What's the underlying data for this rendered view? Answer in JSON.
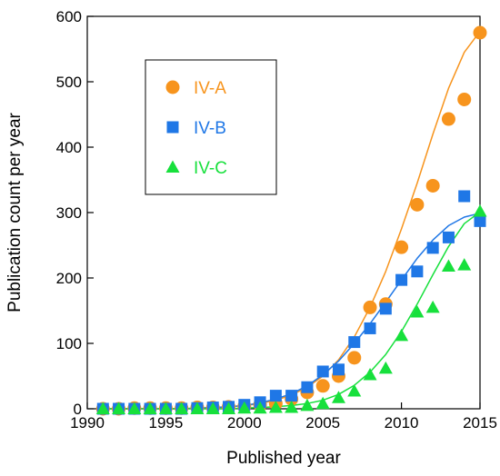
{
  "chart_data": {
    "type": "scatter",
    "title": "",
    "xlabel": "Published year",
    "ylabel": "Publication count per year",
    "xlim": [
      1990,
      2015
    ],
    "ylim": [
      0,
      600
    ],
    "x_ticks": [
      1990,
      1995,
      2000,
      2005,
      2010,
      2015
    ],
    "y_ticks": [
      0,
      100,
      200,
      300,
      400,
      500,
      600
    ],
    "grid": false,
    "legend_position": "top-left",
    "has_fit_curves": true,
    "series": [
      {
        "name": "IV-A",
        "marker": "circle",
        "color": "#f7941d",
        "x": [
          1991,
          1992,
          1993,
          1994,
          1995,
          1996,
          1997,
          1998,
          1999,
          2000,
          2001,
          2002,
          2003,
          2004,
          2005,
          2006,
          2007,
          2008,
          2009,
          2010,
          2011,
          2012,
          2013,
          2014,
          2015
        ],
        "y": [
          0,
          0,
          1,
          1,
          1,
          1,
          2,
          2,
          3,
          4,
          6,
          8,
          15,
          25,
          35,
          50,
          78,
          155,
          160,
          247,
          312,
          341,
          443,
          473,
          575
        ],
        "fit": [
          0,
          0,
          0,
          0,
          0,
          0,
          1,
          1,
          3,
          5,
          8,
          13,
          21,
          33,
          50,
          75,
          110,
          155,
          210,
          275,
          345,
          420,
          490,
          545,
          577
        ]
      },
      {
        "name": "IV-B",
        "marker": "square",
        "color": "#1f77e6",
        "x": [
          1991,
          1992,
          1993,
          1994,
          1995,
          1996,
          1997,
          1998,
          1999,
          2000,
          2001,
          2002,
          2003,
          2004,
          2005,
          2006,
          2007,
          2008,
          2009,
          2010,
          2011,
          2012,
          2013,
          2014,
          2015
        ],
        "y": [
          0,
          0,
          0,
          0,
          0,
          0,
          1,
          2,
          3,
          6,
          10,
          20,
          20,
          33,
          57,
          60,
          102,
          123,
          153,
          197,
          210,
          246,
          262,
          325,
          287
        ],
        "fit": [
          0,
          0,
          0,
          0,
          0,
          0,
          1,
          2,
          3,
          5,
          9,
          15,
          23,
          35,
          52,
          73,
          100,
          130,
          163,
          197,
          230,
          258,
          280,
          293,
          299
        ]
      },
      {
        "name": "IV-C",
        "marker": "triangle",
        "color": "#17e03c",
        "x": [
          1991,
          1992,
          1993,
          1994,
          1995,
          1996,
          1997,
          1998,
          1999,
          2000,
          2001,
          2002,
          2003,
          2004,
          2005,
          2006,
          2007,
          2008,
          2009,
          2010,
          2011,
          2012,
          2013,
          2014,
          2015
        ],
        "y": [
          0,
          0,
          0,
          0,
          0,
          0,
          0,
          0,
          0,
          1,
          1,
          2,
          2,
          5,
          8,
          17,
          27,
          52,
          62,
          112,
          148,
          155,
          218,
          220,
          302
        ],
        "fit": [
          0,
          0,
          0,
          0,
          0,
          0,
          0,
          0,
          0,
          1,
          2,
          3,
          5,
          8,
          13,
          22,
          36,
          56,
          83,
          118,
          160,
          205,
          248,
          283,
          301
        ]
      }
    ]
  }
}
